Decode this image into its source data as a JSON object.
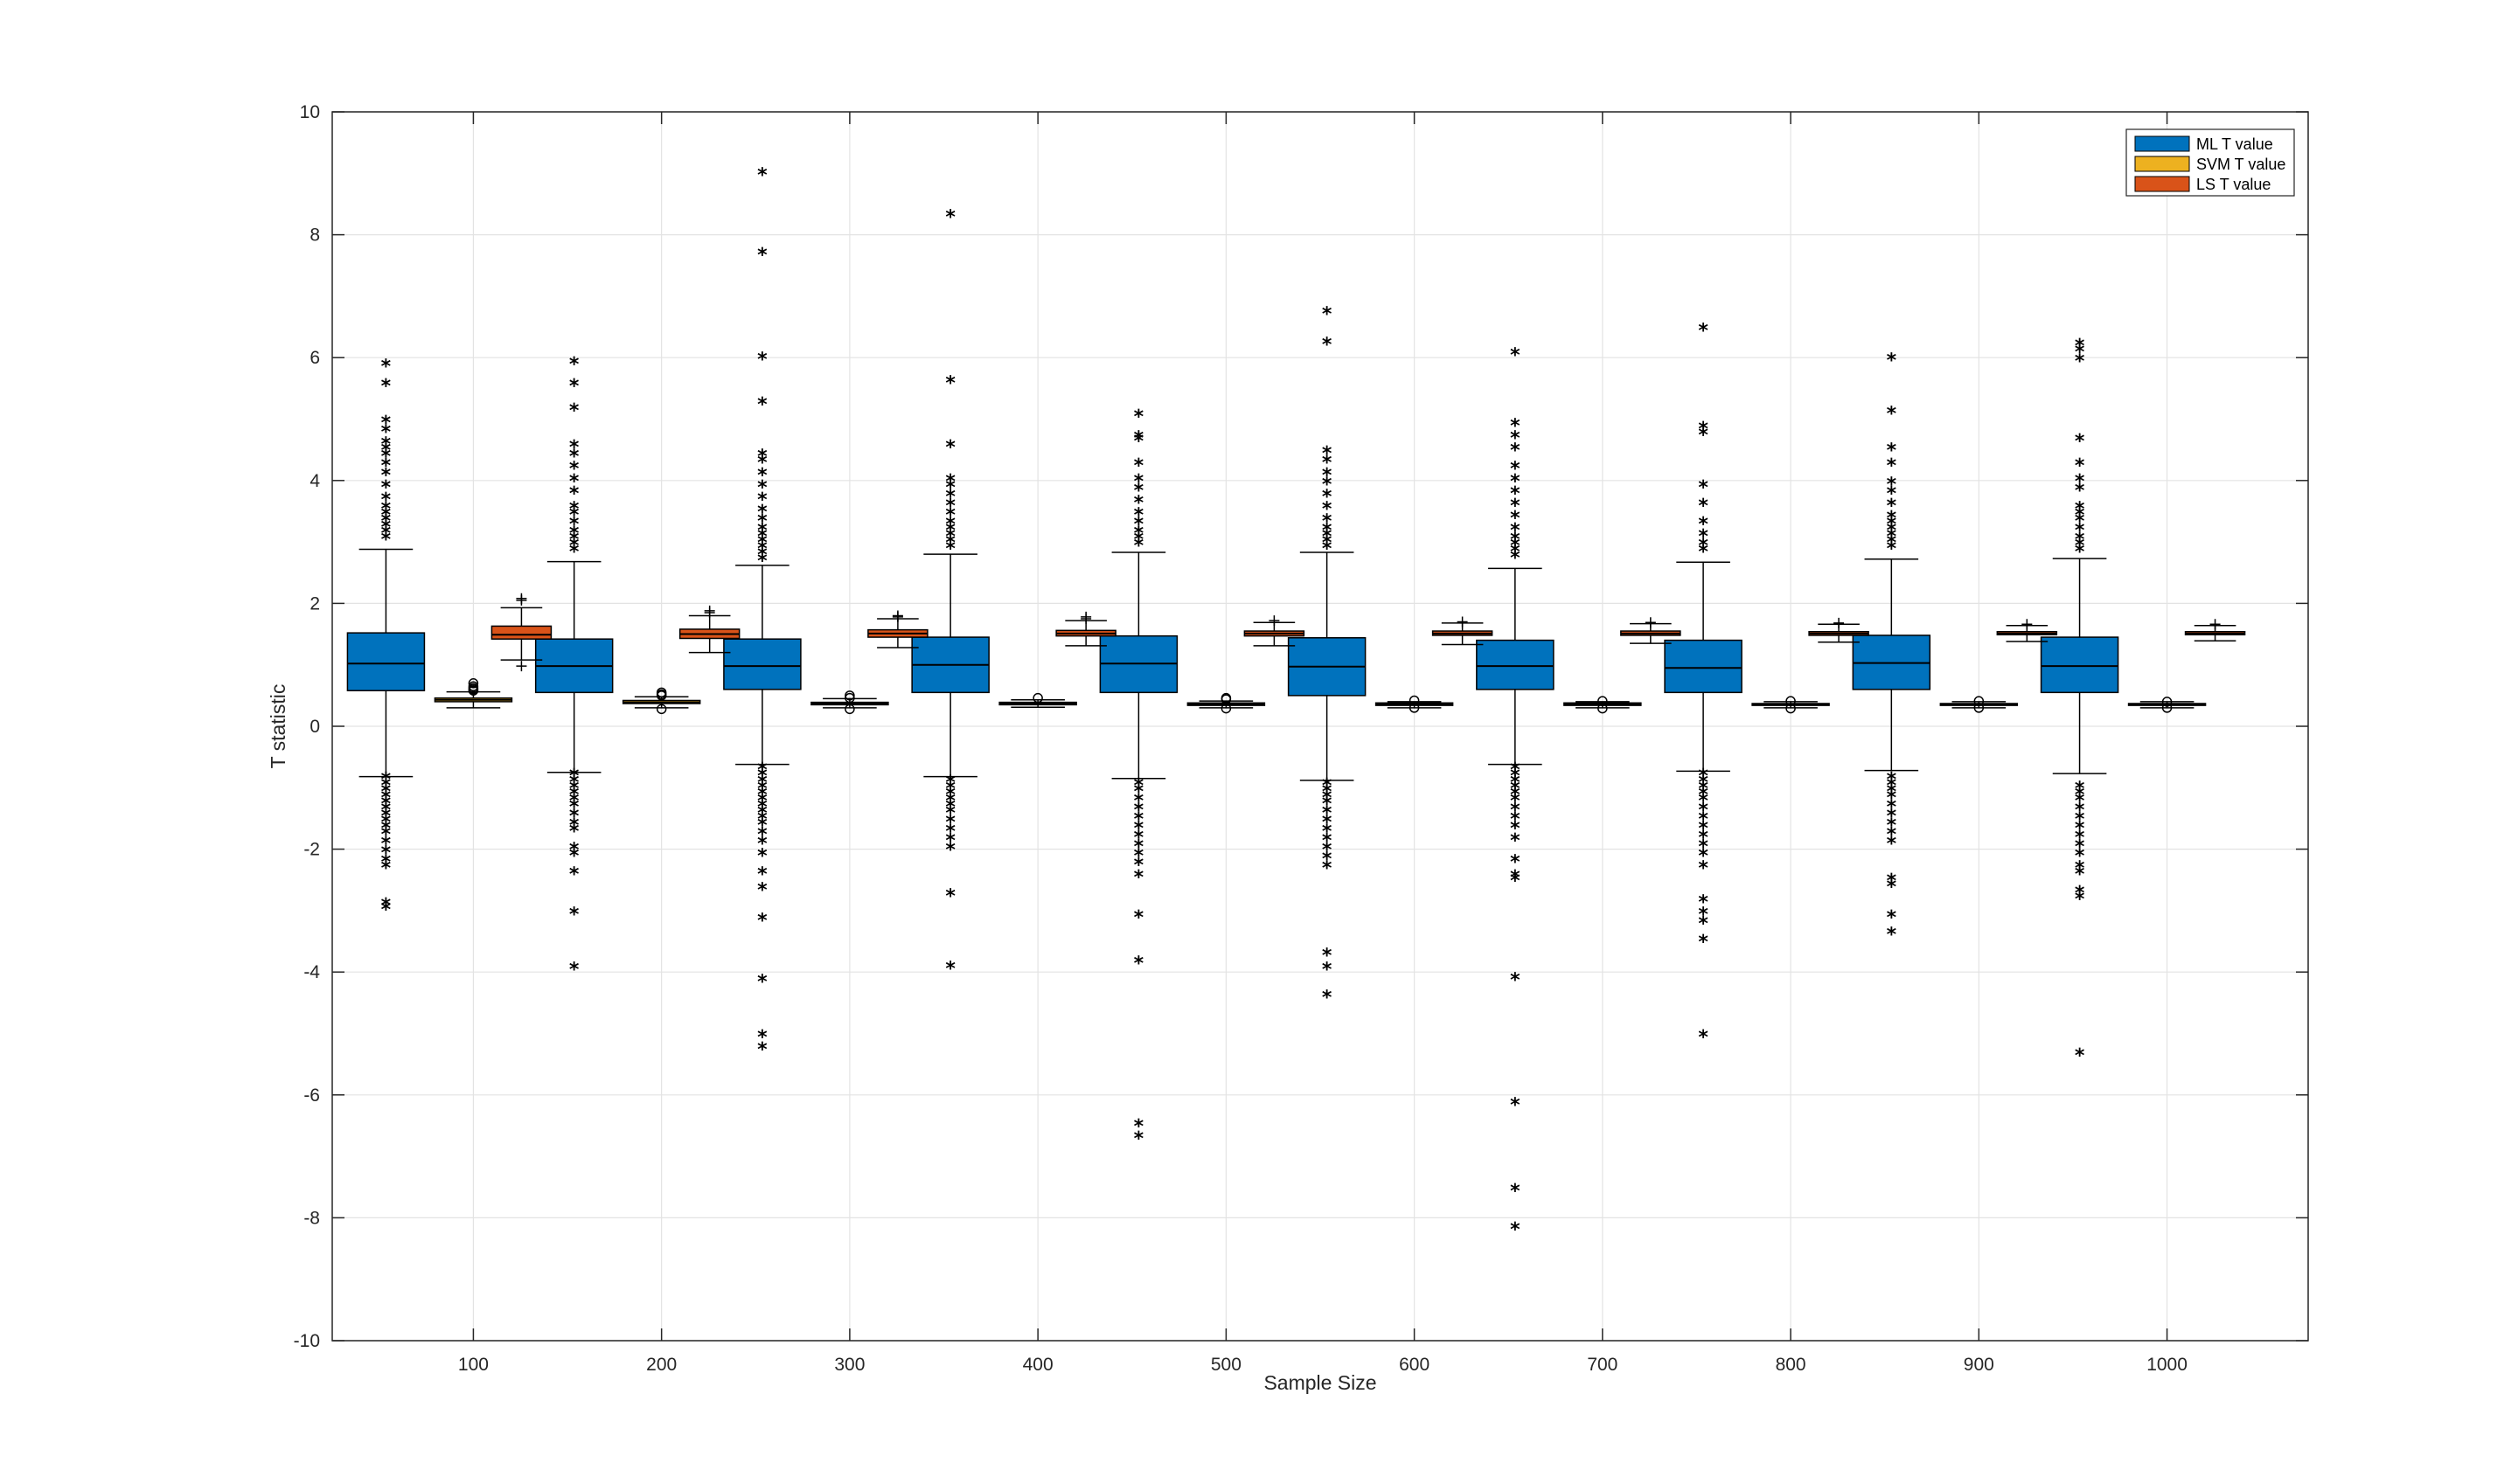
{
  "chart_data": {
    "type": "box",
    "title": "",
    "xlabel": "Sample Size",
    "ylabel": "T statistic",
    "ylim": [
      -10,
      10
    ],
    "yticks": [
      -10,
      -8,
      -6,
      -4,
      -2,
      0,
      2,
      4,
      6,
      8,
      10
    ],
    "categories": [
      "100",
      "200",
      "300",
      "400",
      "500",
      "600",
      "700",
      "800",
      "900",
      "1000"
    ],
    "grid": true,
    "legend_position": "top-right",
    "series": [
      {
        "name": "ML T value",
        "color": "#0072BD",
        "boxes": [
          {
            "q1": 0.58,
            "median": 1.02,
            "q3": 1.52,
            "whisker_low": -0.82,
            "whisker_high": 2.88,
            "outliers": [
              5.87,
              5.55,
              4.95,
              4.8,
              4.6,
              4.5,
              4.4,
              4.25,
              4.1,
              3.9,
              3.7,
              3.55,
              3.45,
              3.35,
              3.25,
              3.15,
              3.05,
              -0.85,
              -0.95,
              -1.05,
              -1.15,
              -1.25,
              -1.35,
              -1.45,
              -1.55,
              -1.65,
              -1.75,
              -1.9,
              -2.05,
              -2.2,
              -2.3,
              -2.9,
              -2.97
            ]
          },
          {
            "q1": 0.55,
            "median": 0.98,
            "q3": 1.42,
            "whisker_low": -0.75,
            "whisker_high": 2.68,
            "outliers": [
              5.9,
              5.55,
              5.15,
              4.55,
              4.4,
              4.2,
              4.0,
              3.8,
              3.55,
              3.45,
              3.3,
              3.15,
              3.05,
              2.95,
              2.85,
              -0.8,
              -0.9,
              -1.0,
              -1.1,
              -1.2,
              -1.3,
              -1.45,
              -1.6,
              -1.7,
              -2.0,
              -2.1,
              -2.4,
              -3.05,
              -3.95
            ]
          },
          {
            "q1": 0.6,
            "median": 0.98,
            "q3": 1.42,
            "whisker_low": -0.62,
            "whisker_high": 2.62,
            "outliers": [
              8.98,
              7.68,
              5.98,
              5.25,
              4.4,
              4.3,
              4.1,
              3.9,
              3.7,
              3.5,
              3.35,
              3.2,
              3.1,
              3.0,
              2.9,
              2.8,
              2.7,
              -0.7,
              -0.8,
              -0.9,
              -1.0,
              -1.1,
              -1.2,
              -1.3,
              -1.4,
              -1.5,
              -1.6,
              -1.75,
              -1.9,
              -2.1,
              -2.4,
              -2.65,
              -3.15,
              -4.15,
              -5.05,
              -5.25
            ]
          },
          {
            "q1": 0.55,
            "median": 1.0,
            "q3": 1.45,
            "whisker_low": -0.82,
            "whisker_high": 2.8,
            "outliers": [
              8.3,
              5.6,
              4.55,
              4.0,
              3.9,
              3.75,
              3.6,
              3.45,
              3.3,
              3.2,
              3.1,
              3.0,
              2.9,
              -0.9,
              -1.0,
              -1.1,
              -1.2,
              -1.3,
              -1.4,
              -1.55,
              -1.7,
              -1.85,
              -2.0,
              -2.75,
              -3.93
            ]
          },
          {
            "q1": 0.55,
            "median": 1.02,
            "q3": 1.47,
            "whisker_low": -0.85,
            "whisker_high": 2.83,
            "outliers": [
              5.05,
              4.7,
              4.65,
              4.25,
              4.0,
              3.85,
              3.65,
              3.45,
              3.3,
              3.15,
              3.05,
              2.95,
              -0.95,
              -1.05,
              -1.2,
              -1.35,
              -1.5,
              -1.65,
              -1.8,
              -1.95,
              -2.1,
              -2.25,
              -2.45,
              -3.1,
              -3.85,
              -6.5,
              -6.7
            ]
          },
          {
            "q1": 0.5,
            "median": 0.97,
            "q3": 1.44,
            "whisker_low": -0.88,
            "whisker_high": 2.83,
            "outliers": [
              6.72,
              6.22,
              4.45,
              4.3,
              4.1,
              3.95,
              3.75,
              3.55,
              3.35,
              3.2,
              3.1,
              3.0,
              2.9,
              -0.95,
              -1.05,
              -1.15,
              -1.25,
              -1.4,
              -1.55,
              -1.7,
              -1.85,
              -2.0,
              -2.15,
              -2.3,
              -3.72,
              -3.95,
              -4.4
            ]
          },
          {
            "q1": 0.6,
            "median": 0.98,
            "q3": 1.4,
            "whisker_low": -0.62,
            "whisker_high": 2.57,
            "outliers": [
              6.05,
              4.9,
              4.7,
              4.5,
              4.2,
              4.0,
              3.8,
              3.6,
              3.4,
              3.2,
              3.05,
              2.95,
              2.85,
              2.75,
              -0.7,
              -0.8,
              -0.9,
              -1.0,
              -1.1,
              -1.2,
              -1.35,
              -1.5,
              -1.65,
              -1.85,
              -2.2,
              -2.45,
              -2.5,
              -4.12,
              -6.15,
              -7.55,
              -8.18
            ]
          },
          {
            "q1": 0.55,
            "median": 0.95,
            "q3": 1.4,
            "whisker_low": -0.73,
            "whisker_high": 2.67,
            "outliers": [
              6.45,
              4.85,
              4.75,
              3.9,
              3.6,
              3.3,
              3.1,
              2.95,
              2.85,
              -0.8,
              -0.9,
              -1.0,
              -1.1,
              -1.2,
              -1.35,
              -1.5,
              -1.65,
              -1.8,
              -1.95,
              -2.1,
              -2.3,
              -2.85,
              -3.05,
              -3.2,
              -3.5,
              -5.05
            ]
          },
          {
            "q1": 0.6,
            "median": 1.03,
            "q3": 1.48,
            "whisker_low": -0.72,
            "whisker_high": 2.72,
            "outliers": [
              5.97,
              5.1,
              4.5,
              4.25,
              3.95,
              3.8,
              3.6,
              3.4,
              3.3,
              3.2,
              3.1,
              3.0,
              2.9,
              -0.85,
              -0.95,
              -1.05,
              -1.15,
              -1.3,
              -1.45,
              -1.6,
              -1.75,
              -1.9,
              -2.5,
              -2.6,
              -3.1,
              -3.38
            ]
          },
          {
            "q1": 0.55,
            "median": 0.98,
            "q3": 1.45,
            "whisker_low": -0.77,
            "whisker_high": 2.73,
            "outliers": [
              6.2,
              6.1,
              5.95,
              4.65,
              4.25,
              4.0,
              3.85,
              3.55,
              3.45,
              3.35,
              3.2,
              3.05,
              2.95,
              2.85,
              -1.0,
              -1.1,
              -1.2,
              -1.35,
              -1.5,
              -1.65,
              -1.8,
              -1.95,
              -2.1,
              -2.3,
              -2.4,
              -2.7,
              -2.8,
              -5.35
            ]
          }
        ]
      },
      {
        "name": "SVM T value",
        "color": "#EDB120",
        "boxes": [
          {
            "q1": 0.4,
            "median": 0.43,
            "q3": 0.46,
            "whisker_low": 0.3,
            "whisker_high": 0.56,
            "outliers": [
              0.58,
              0.6,
              0.62,
              0.65,
              0.7
            ]
          },
          {
            "q1": 0.37,
            "median": 0.39,
            "q3": 0.42,
            "whisker_low": 0.3,
            "whisker_high": 0.48,
            "outliers": [
              0.28,
              0.5,
              0.52,
              0.55
            ]
          },
          {
            "q1": 0.35,
            "median": 0.37,
            "q3": 0.39,
            "whisker_low": 0.3,
            "whisker_high": 0.45,
            "outliers": [
              0.28,
              0.46,
              0.5
            ]
          },
          {
            "q1": 0.35,
            "median": 0.37,
            "q3": 0.39,
            "whisker_low": 0.31,
            "whisker_high": 0.43,
            "outliers": [
              0.46
            ]
          },
          {
            "q1": 0.34,
            "median": 0.36,
            "q3": 0.38,
            "whisker_low": 0.3,
            "whisker_high": 0.41,
            "outliers": [
              0.29,
              0.44,
              0.46
            ]
          },
          {
            "q1": 0.34,
            "median": 0.36,
            "q3": 0.38,
            "whisker_low": 0.3,
            "whisker_high": 0.4,
            "outliers": [
              0.3,
              0.42
            ]
          },
          {
            "q1": 0.34,
            "median": 0.36,
            "q3": 0.38,
            "whisker_low": 0.3,
            "whisker_high": 0.4,
            "outliers": [
              0.29,
              0.41
            ]
          },
          {
            "q1": 0.34,
            "median": 0.35,
            "q3": 0.37,
            "whisker_low": 0.3,
            "whisker_high": 0.4,
            "outliers": [
              0.29,
              0.41
            ]
          },
          {
            "q1": 0.34,
            "median": 0.35,
            "q3": 0.37,
            "whisker_low": 0.3,
            "whisker_high": 0.4,
            "outliers": [
              0.3,
              0.41
            ]
          },
          {
            "q1": 0.34,
            "median": 0.35,
            "q3": 0.37,
            "whisker_low": 0.3,
            "whisker_high": 0.4,
            "outliers": [
              0.3,
              0.4
            ]
          }
        ]
      },
      {
        "name": "LS T value",
        "color": "#D95319",
        "boxes": [
          {
            "q1": 1.42,
            "median": 1.49,
            "q3": 1.63,
            "whisker_low": 1.08,
            "whisker_high": 1.93,
            "outliers": [
              2.05,
              2.08,
              0.98
            ]
          },
          {
            "q1": 1.43,
            "median": 1.5,
            "q3": 1.58,
            "whisker_low": 1.2,
            "whisker_high": 1.8,
            "outliers": [
              1.85,
              1.88
            ]
          },
          {
            "q1": 1.45,
            "median": 1.51,
            "q3": 1.57,
            "whisker_low": 1.28,
            "whisker_high": 1.75,
            "outliers": [
              1.78,
              1.8
            ]
          },
          {
            "q1": 1.47,
            "median": 1.51,
            "q3": 1.56,
            "whisker_low": 1.31,
            "whisker_high": 1.72,
            "outliers": [
              1.75,
              1.78
            ]
          },
          {
            "q1": 1.47,
            "median": 1.51,
            "q3": 1.55,
            "whisker_low": 1.31,
            "whisker_high": 1.69,
            "outliers": [
              1.72
            ]
          },
          {
            "q1": 1.48,
            "median": 1.51,
            "q3": 1.55,
            "whisker_low": 1.33,
            "whisker_high": 1.68,
            "outliers": [
              1.7
            ]
          },
          {
            "q1": 1.48,
            "median": 1.51,
            "q3": 1.55,
            "whisker_low": 1.35,
            "whisker_high": 1.67,
            "outliers": [
              1.69
            ]
          },
          {
            "q1": 1.48,
            "median": 1.51,
            "q3": 1.54,
            "whisker_low": 1.37,
            "whisker_high": 1.66,
            "outliers": [
              1.68
            ]
          },
          {
            "q1": 1.49,
            "median": 1.51,
            "q3": 1.54,
            "whisker_low": 1.38,
            "whisker_high": 1.64,
            "outliers": [
              1.66
            ]
          },
          {
            "q1": 1.49,
            "median": 1.51,
            "q3": 1.54,
            "whisker_low": 1.39,
            "whisker_high": 1.64,
            "outliers": [
              1.66
            ]
          }
        ]
      }
    ]
  }
}
